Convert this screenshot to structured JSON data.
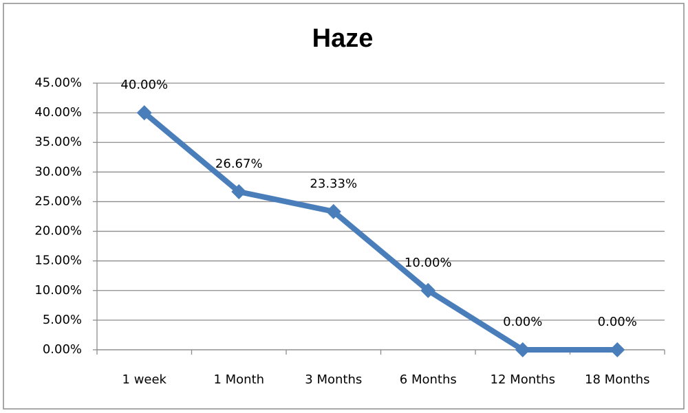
{
  "chart_data": {
    "type": "line",
    "title": "Haze",
    "categories": [
      "1 week",
      "1 Month",
      "3 Months",
      "6 Months",
      "12 Months",
      "18 Months"
    ],
    "values": [
      40,
      26.67,
      23.33,
      10,
      0,
      0
    ],
    "value_labels": [
      "40.00%",
      "26.67%",
      "23.33%",
      "10.00%",
      "0.00%",
      "0.00%"
    ],
    "color": "#4a7ebb",
    "ylim": [
      0,
      45
    ],
    "yticks": [
      {
        "value": 0,
        "label": "0.00%"
      },
      {
        "value": 5,
        "label": "5.00%"
      },
      {
        "value": 10,
        "label": "10.00%"
      },
      {
        "value": 15,
        "label": "15.00%"
      },
      {
        "value": 20,
        "label": "20.00%"
      },
      {
        "value": 25,
        "label": "25.00%"
      },
      {
        "value": 30,
        "label": "30.00%"
      },
      {
        "value": 35,
        "label": "35.00%"
      },
      {
        "value": 40,
        "label": "40.00%"
      },
      {
        "value": 45,
        "label": "45.00%"
      }
    ],
    "grid": true
  }
}
